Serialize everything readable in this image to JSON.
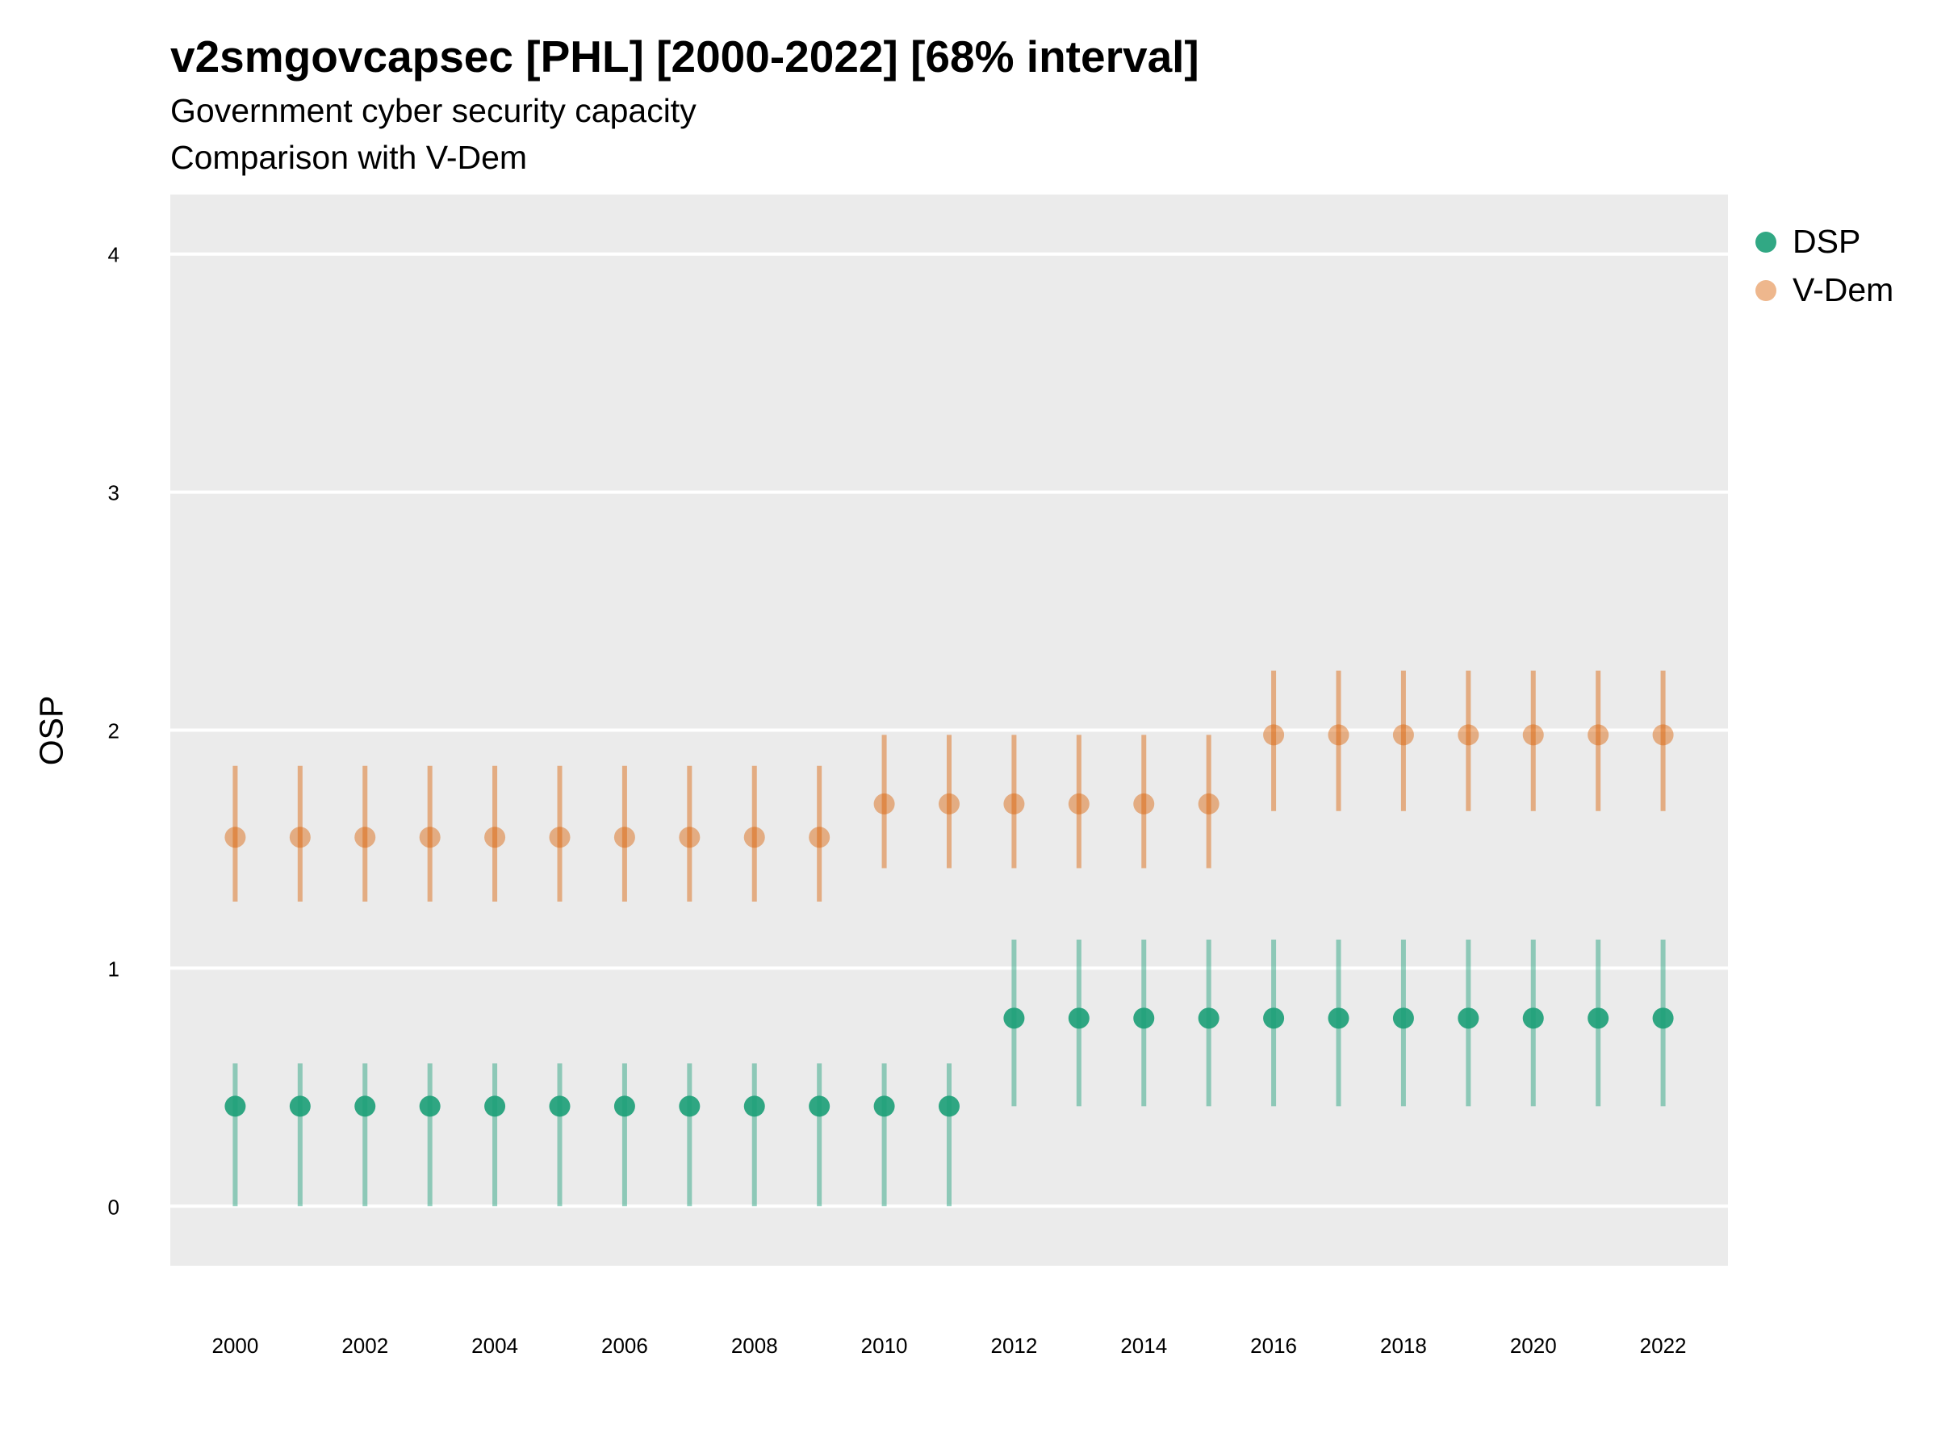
{
  "chart_data": {
    "type": "scatter",
    "title": "v2smgovcapsec [PHL] [2000-2022] [68% interval]",
    "subtitle": "Government cyber security capacity",
    "subtitle2": "Comparison with V-Dem",
    "xlabel": "",
    "ylabel": "OSP",
    "xlim": [
      1999,
      2023
    ],
    "ylim": [
      -0.25,
      4.25
    ],
    "x_ticks": [
      2000,
      2002,
      2004,
      2006,
      2008,
      2010,
      2012,
      2014,
      2016,
      2018,
      2020,
      2022
    ],
    "y_ticks": [
      0,
      1,
      2,
      3,
      4
    ],
    "grid": true,
    "legend_position": "right",
    "x": [
      2000,
      2001,
      2002,
      2003,
      2004,
      2005,
      2006,
      2007,
      2008,
      2009,
      2010,
      2011,
      2012,
      2013,
      2014,
      2015,
      2016,
      2017,
      2018,
      2019,
      2020,
      2021,
      2022
    ],
    "series": [
      {
        "name": "DSP",
        "color": "#1b9e77",
        "values": [
          0.42,
          0.42,
          0.42,
          0.42,
          0.42,
          0.42,
          0.42,
          0.42,
          0.42,
          0.42,
          0.42,
          0.42,
          0.79,
          0.79,
          0.79,
          0.79,
          0.79,
          0.79,
          0.79,
          0.79,
          0.79,
          0.79,
          0.79
        ],
        "lower": [
          0.0,
          0.0,
          0.0,
          0.0,
          0.0,
          0.0,
          0.0,
          0.0,
          0.0,
          0.0,
          0.0,
          0.0,
          0.42,
          0.42,
          0.42,
          0.42,
          0.42,
          0.42,
          0.42,
          0.42,
          0.42,
          0.42,
          0.42
        ],
        "upper": [
          0.6,
          0.6,
          0.6,
          0.6,
          0.6,
          0.6,
          0.6,
          0.6,
          0.6,
          0.6,
          0.6,
          0.6,
          1.12,
          1.12,
          1.12,
          1.12,
          1.12,
          1.12,
          1.12,
          1.12,
          1.12,
          1.12,
          1.12
        ]
      },
      {
        "name": "V-Dem",
        "color": "#d95f02",
        "values": [
          1.55,
          1.55,
          1.55,
          1.55,
          1.55,
          1.55,
          1.55,
          1.55,
          1.55,
          1.55,
          1.69,
          1.69,
          1.69,
          1.69,
          1.69,
          1.69,
          1.98,
          1.98,
          1.98,
          1.98,
          1.98,
          1.98,
          1.98
        ],
        "lower": [
          1.28,
          1.28,
          1.28,
          1.28,
          1.28,
          1.28,
          1.28,
          1.28,
          1.28,
          1.28,
          1.42,
          1.42,
          1.42,
          1.42,
          1.42,
          1.42,
          1.66,
          1.66,
          1.66,
          1.66,
          1.66,
          1.66,
          1.66
        ],
        "upper": [
          1.85,
          1.85,
          1.85,
          1.85,
          1.85,
          1.85,
          1.85,
          1.85,
          1.85,
          1.85,
          1.98,
          1.98,
          1.98,
          1.98,
          1.98,
          1.98,
          2.25,
          2.25,
          2.25,
          2.25,
          2.25,
          2.25,
          2.25
        ]
      }
    ]
  },
  "colors": {
    "panel_background": "#ebebeb",
    "gridline": "#ffffff"
  }
}
